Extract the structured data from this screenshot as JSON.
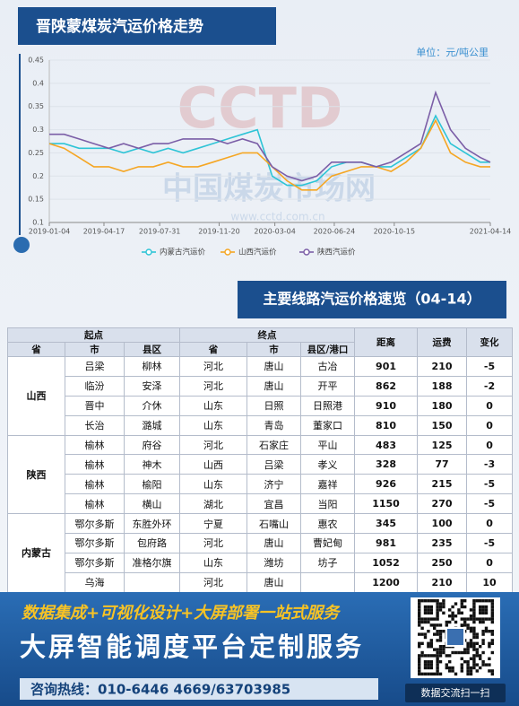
{
  "chart_data": {
    "type": "line",
    "title": "晋陕蒙煤炭汽运价格走势",
    "unit": "单位：元/吨公里",
    "x": [
      "2019-01-04",
      "2019-02-01",
      "2019-03-01",
      "2019-03-29",
      "2019-04-26",
      "2019-05-24",
      "2019-06-21",
      "2019-07-19",
      "2019-08-16",
      "2019-09-13",
      "2019-10-11",
      "2019-11-08",
      "2019-12-06",
      "2020-01-03",
      "2020-01-31",
      "2020-02-28",
      "2020-03-27",
      "2020-04-24",
      "2020-05-22",
      "2020-06-19",
      "2020-07-17",
      "2020-08-14",
      "2020-09-11",
      "2020-10-09",
      "2020-11-06",
      "2020-12-04",
      "2021-01-01",
      "2021-01-29",
      "2021-02-26",
      "2021-03-26",
      "2021-04-14"
    ],
    "series": [
      {
        "name": "内蒙古汽运价",
        "color": "#2ec4d6",
        "values": [
          0.27,
          0.27,
          0.26,
          0.26,
          0.26,
          0.25,
          0.26,
          0.25,
          0.26,
          0.25,
          0.26,
          0.27,
          0.28,
          0.29,
          0.3,
          0.2,
          0.18,
          0.18,
          0.19,
          0.22,
          0.23,
          0.23,
          0.22,
          0.22,
          0.24,
          0.26,
          0.33,
          0.27,
          0.25,
          0.23,
          0.23
        ]
      },
      {
        "name": "山西汽运价",
        "color": "#f5a623",
        "values": [
          0.27,
          0.26,
          0.24,
          0.22,
          0.22,
          0.21,
          0.22,
          0.22,
          0.23,
          0.22,
          0.22,
          0.23,
          0.24,
          0.25,
          0.25,
          0.22,
          0.19,
          0.17,
          0.17,
          0.2,
          0.21,
          0.22,
          0.22,
          0.21,
          0.23,
          0.26,
          0.32,
          0.25,
          0.23,
          0.22,
          0.22
        ]
      },
      {
        "name": "陕西汽运价",
        "color": "#7b5ea7",
        "values": [
          0.29,
          0.29,
          0.28,
          0.27,
          0.26,
          0.27,
          0.26,
          0.27,
          0.27,
          0.28,
          0.28,
          0.28,
          0.27,
          0.28,
          0.27,
          0.22,
          0.2,
          0.19,
          0.2,
          0.23,
          0.23,
          0.23,
          0.22,
          0.23,
          0.25,
          0.27,
          0.38,
          0.3,
          0.26,
          0.24,
          0.23
        ]
      }
    ],
    "xlim": [
      "2019-01-04",
      "2021-04-14"
    ],
    "xticks": [
      "2019-01-04",
      "2019-04-17",
      "2019-07-31",
      "2019-11-20",
      "2020-03-04",
      "2020-06-24",
      "2020-10-15",
      "2021-04-14"
    ],
    "ylim": [
      0.1,
      0.45
    ],
    "yticks": [
      0.1,
      0.15,
      0.2,
      0.25,
      0.3,
      0.35,
      0.4,
      0.45
    ],
    "grid": true,
    "legend": "bottom"
  },
  "watermark": {
    "logo": "CCTD",
    "name": "中国煤炭市场网",
    "url": "www.cctd.com.cn"
  },
  "table": {
    "title": "主要线路汽运价格速览（04-14）",
    "header_groups": [
      "起点",
      "终点"
    ],
    "columns": [
      "省",
      "市",
      "县区",
      "省",
      "市",
      "县区/港口",
      "距离",
      "运费",
      "变化"
    ],
    "groups": [
      {
        "province": "山西",
        "rows": [
          [
            "吕梁",
            "柳林",
            "河北",
            "唐山",
            "古冶",
            901,
            210,
            -5
          ],
          [
            "临汾",
            "安泽",
            "河北",
            "唐山",
            "开平",
            862,
            188,
            -2
          ],
          [
            "晋中",
            "介休",
            "山东",
            "日照",
            "日照港",
            910,
            180,
            0
          ],
          [
            "长治",
            "潞城",
            "山东",
            "青岛",
            "董家口",
            810,
            150,
            0
          ]
        ]
      },
      {
        "province": "陕西",
        "rows": [
          [
            "榆林",
            "府谷",
            "河北",
            "石家庄",
            "平山",
            483,
            125,
            0
          ],
          [
            "榆林",
            "神木",
            "山西",
            "吕梁",
            "孝义",
            328,
            77,
            -3
          ],
          [
            "榆林",
            "榆阳",
            "山东",
            "济宁",
            "嘉祥",
            926,
            215,
            -5
          ],
          [
            "榆林",
            "横山",
            "湖北",
            "宜昌",
            "当阳",
            1150,
            270,
            -5
          ]
        ]
      },
      {
        "province": "内蒙古",
        "rows": [
          [
            "鄂尔多斯",
            "东胜外环",
            "宁夏",
            "石嘴山",
            "惠农",
            345,
            100,
            0
          ],
          [
            "鄂尔多斯",
            "包府路",
            "河北",
            "唐山",
            "曹妃甸",
            981,
            235,
            -5
          ],
          [
            "鄂尔多斯",
            "准格尔旗",
            "山东",
            "潍坊",
            "坊子",
            1052,
            250,
            0
          ],
          [
            "乌海",
            null,
            "河北",
            "唐山",
            null,
            1200,
            210,
            10
          ]
        ]
      }
    ]
  },
  "banner": {
    "line1": "数据集成+可视化设计+大屏部署一站式服务",
    "line2": "大屏智能调度平台定制服务",
    "hotline": "咨询热线：010-6446 4669/63703985",
    "qr_caption": "数据交流扫一扫"
  }
}
